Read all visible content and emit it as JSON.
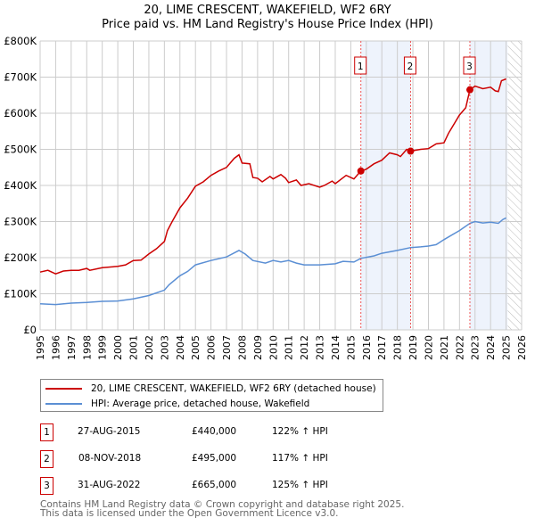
{
  "chart_data": {
    "type": "line",
    "title": "20, LIME CRESCENT, WAKEFIELD, WF2 6RY",
    "subtitle": "Price paid vs. HM Land Registry's House Price Index (HPI)",
    "xlim": [
      1995,
      2026
    ],
    "ylim": [
      0,
      800000
    ],
    "y_ticks": [
      {
        "v": 0,
        "label": "£0"
      },
      {
        "v": 100000,
        "label": "£100K"
      },
      {
        "v": 200000,
        "label": "£200K"
      },
      {
        "v": 300000,
        "label": "£300K"
      },
      {
        "v": 400000,
        "label": "£400K"
      },
      {
        "v": 500000,
        "label": "£500K"
      },
      {
        "v": 600000,
        "label": "£600K"
      },
      {
        "v": 700000,
        "label": "£700K"
      },
      {
        "v": 800000,
        "label": "£800K"
      }
    ],
    "x_ticks": [
      "1995",
      "1996",
      "1997",
      "1998",
      "1999",
      "2000",
      "2001",
      "2002",
      "2003",
      "2004",
      "2005",
      "2006",
      "2007",
      "2008",
      "2009",
      "2010",
      "2011",
      "2012",
      "2013",
      "2014",
      "2015",
      "2016",
      "2017",
      "2018",
      "2019",
      "2020",
      "2021",
      "2022",
      "2023",
      "2024",
      "2025",
      "2026"
    ],
    "grid": true,
    "series": [
      {
        "name": "20, LIME CRESCENT, WAKEFIELD, WF2 6RY (detached house)",
        "color": "#cc0000",
        "x": [
          1995,
          1995.5,
          1996,
          1996.5,
          1997,
          1997.5,
          1998,
          1998.2,
          1999,
          2000,
          2000.5,
          2001,
          2001.5,
          2002,
          2002.5,
          2003,
          2003.2,
          2003.5,
          2004,
          2004.5,
          2005,
          2005.5,
          2006,
          2006.5,
          2007,
          2007.5,
          2007.8,
          2008,
          2008.5,
          2008.7,
          2009,
          2009.3,
          2009.8,
          2010,
          2010.5,
          2010.8,
          2011,
          2011.5,
          2011.8,
          2012.3,
          2013,
          2013.3,
          2013.8,
          2014,
          2014.7,
          2015.2,
          2015.65,
          2016,
          2016.5,
          2017,
          2017.5,
          2018,
          2018.2,
          2018.6,
          2018.85,
          2019.5,
          2020,
          2020.5,
          2021,
          2021.3,
          2022,
          2022.4,
          2022.67,
          2023,
          2023.5,
          2024,
          2024.3,
          2024.5,
          2024.7,
          2025
        ],
        "y": [
          160,
          165,
          155,
          163,
          165,
          165,
          170,
          165,
          172,
          176,
          180,
          192,
          193,
          210,
          225,
          245,
          275,
          300,
          338,
          365,
          398,
          410,
          428,
          440,
          450,
          475,
          485,
          462,
          460,
          422,
          420,
          410,
          425,
          418,
          430,
          420,
          408,
          415,
          400,
          405,
          395,
          400,
          412,
          405,
          428,
          418,
          440,
          445,
          460,
          470,
          490,
          485,
          480,
          500,
          495,
          500,
          502,
          515,
          518,
          545,
          595,
          615,
          665,
          675,
          668,
          672,
          662,
          660,
          690,
          695
        ]
      },
      {
        "name": "HPI: Average price, detached house, Wakefield",
        "color": "#5b8fd4",
        "x": [
          1995,
          1996,
          1997,
          1998,
          1999,
          2000,
          2001,
          2002,
          2003,
          2003.3,
          2004,
          2004.5,
          2005,
          2006,
          2007,
          2007.8,
          2008.2,
          2008.7,
          2009.5,
          2010,
          2010.5,
          2011,
          2011.5,
          2012,
          2013,
          2014,
          2014.5,
          2015.2,
          2015.65,
          2016.5,
          2017,
          2018,
          2018.85,
          2019.5,
          2020,
          2020.5,
          2021,
          2022,
          2022.67,
          2023,
          2023.5,
          2024,
          2024.5,
          2024.8,
          2025
        ],
        "y": [
          72,
          70,
          74,
          76,
          79,
          80,
          86,
          95,
          110,
          125,
          150,
          162,
          180,
          192,
          202,
          220,
          210,
          192,
          185,
          192,
          188,
          192,
          185,
          180,
          180,
          183,
          190,
          188,
          198,
          205,
          212,
          220,
          228,
          230,
          232,
          236,
          250,
          275,
          295,
          300,
          296,
          298,
          295,
          306,
          310
        ]
      }
    ],
    "y_units": "thousands GBP",
    "sales": [
      {
        "n": "1",
        "x": 2015.65,
        "date": "27-AUG-2015",
        "price": "£440,000",
        "price_value": 440,
        "hpi": "122% ↑ HPI"
      },
      {
        "n": "2",
        "x": 2018.85,
        "date": "08-NOV-2018",
        "price": "£495,000",
        "price_value": 495,
        "hpi": "117% ↑ HPI"
      },
      {
        "n": "3",
        "x": 2022.67,
        "date": "31-AUG-2022",
        "price": "£665,000",
        "price_value": 665,
        "hpi": "125% ↑ HPI"
      }
    ],
    "forecast_from": 2025.1
  },
  "footer": {
    "line1": "Contains HM Land Registry data © Crown copyright and database right 2025.",
    "line2": "This data is licensed under the Open Government Licence v3.0."
  }
}
